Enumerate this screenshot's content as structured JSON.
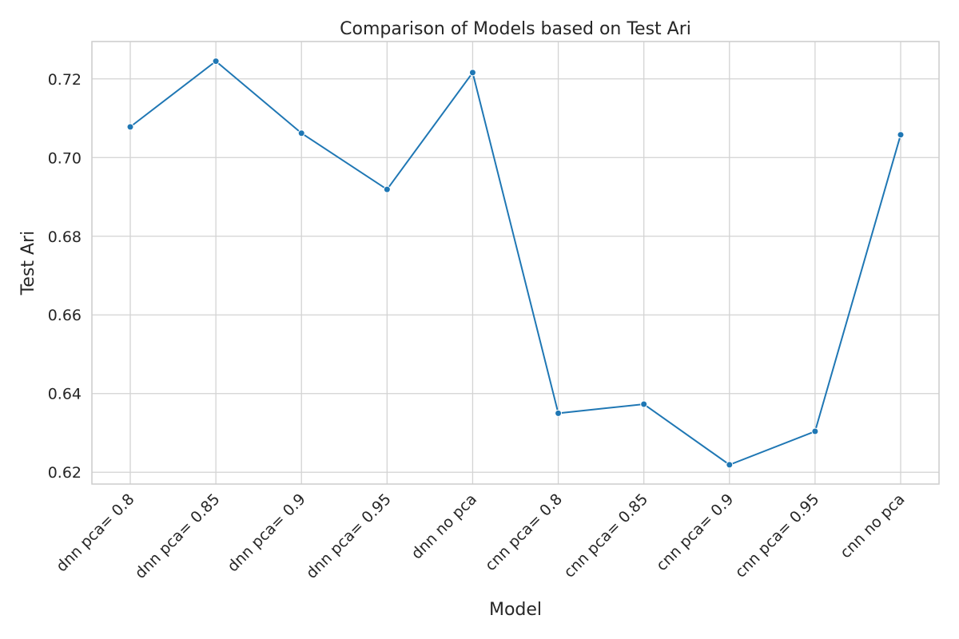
{
  "chart_data": {
    "type": "line",
    "title": "Comparison of Models based on Test Ari",
    "xlabel": "Model",
    "ylabel": "Test Ari",
    "categories": [
      "dnn pca= 0.8",
      "dnn pca= 0.85",
      "dnn pca= 0.9",
      "dnn pca= 0.95",
      "dnn no pca",
      "cnn pca= 0.8",
      "cnn pca= 0.85",
      "cnn pca= 0.9",
      "cnn pca= 0.95",
      "cnn no pca"
    ],
    "series": [
      {
        "values": [
          0.7078,
          0.7245,
          0.7062,
          0.6919,
          0.7216,
          0.635,
          0.6373,
          0.6219,
          0.6304,
          0.7058
        ]
      }
    ],
    "ylim": [
      0.617,
      0.7295
    ],
    "yticks": [
      0.62,
      0.64,
      0.66,
      0.68,
      0.7,
      0.72
    ],
    "ytick_labels": [
      "0.62",
      "0.64",
      "0.66",
      "0.68",
      "0.70",
      "0.72"
    ],
    "grid": true,
    "color": "#1f77b4"
  }
}
